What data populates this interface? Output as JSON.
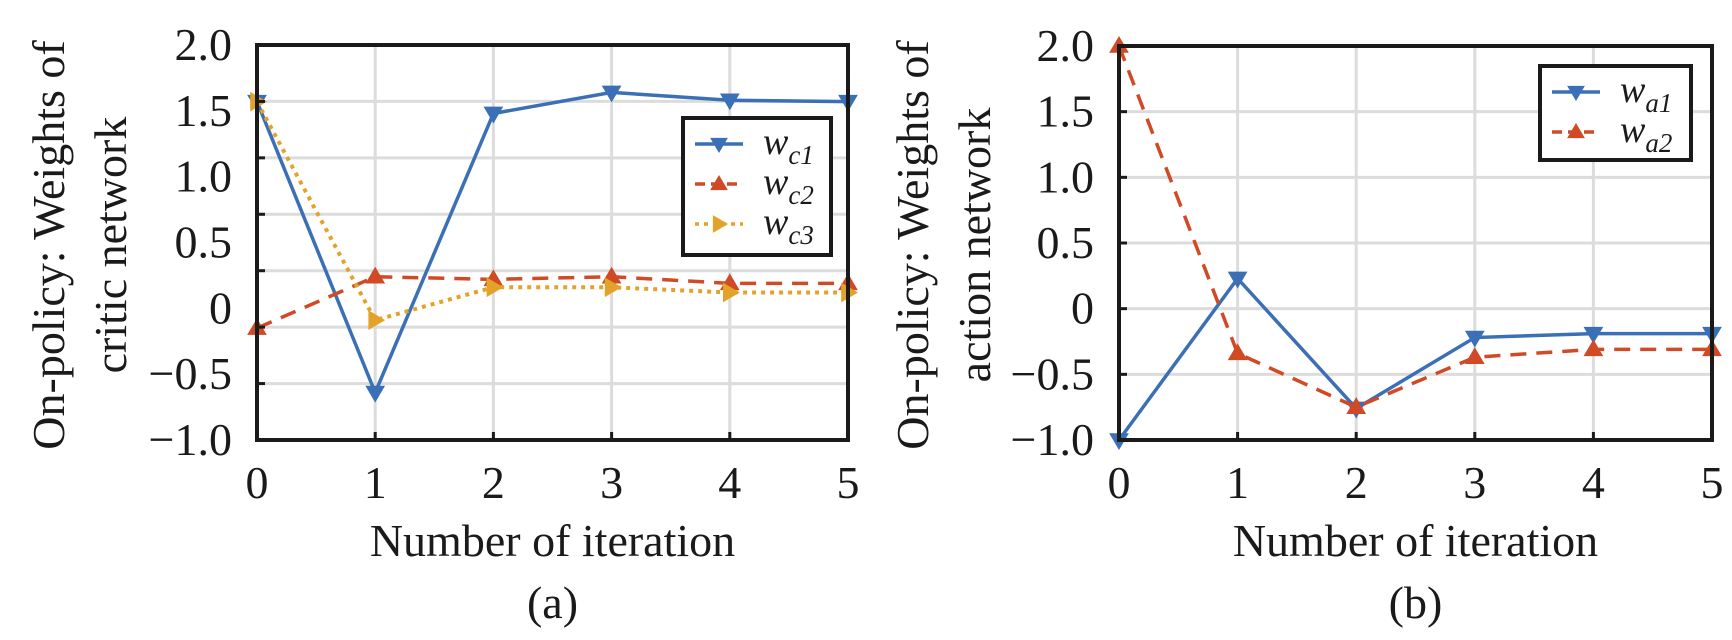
{
  "chart_data": [
    {
      "type": "line",
      "panel_label": "(a)",
      "title": "",
      "xlabel": "Number of iteration",
      "ylabel_lines": [
        "On-policy: Weights of",
        "critic network"
      ],
      "x": [
        0,
        1,
        2,
        3,
        4,
        5
      ],
      "xticks": [
        "0",
        "1",
        "2",
        "3",
        "4",
        "5"
      ],
      "xlim": [
        0,
        5
      ],
      "ylim": [
        -1.0,
        2.0
      ],
      "yticks": [
        "2.0",
        "1.5",
        "1.0",
        "0.5",
        "0",
        "−0.5",
        "−1.0"
      ],
      "grid": true,
      "grid_y_divisions": 7,
      "legend_position": "upper-right",
      "series": [
        {
          "name": "w",
          "sub": "c1",
          "color": "#3b6fb6",
          "dash": "solid",
          "marker": "triangle-down",
          "values": [
            1.57,
            -0.64,
            1.48,
            1.64,
            1.58,
            1.57
          ]
        },
        {
          "name": "w",
          "sub": "c2",
          "color": "#d04a26",
          "dash": "dashed",
          "marker": "triangle-up",
          "values": [
            -0.15,
            0.24,
            0.22,
            0.24,
            0.19,
            0.19
          ]
        },
        {
          "name": "w",
          "sub": "c3",
          "color": "#e3a229",
          "dash": "dotted",
          "marker": "triangle-right",
          "values": [
            1.57,
            -0.09,
            0.16,
            0.16,
            0.12,
            0.12
          ]
        }
      ]
    },
    {
      "type": "line",
      "panel_label": "(b)",
      "title": "",
      "xlabel": "Number of iteration",
      "ylabel_lines": [
        "On-policy: Weights of",
        "action network"
      ],
      "x": [
        0,
        1,
        2,
        3,
        4,
        5
      ],
      "xticks": [
        "0",
        "1",
        "2",
        "3",
        "4",
        "5"
      ],
      "xlim": [
        0,
        5
      ],
      "ylim": [
        -1.0,
        2.0
      ],
      "yticks": [
        "2.0",
        "1.5",
        "1.0",
        "0.5",
        "0",
        "−0.5",
        "−1.0"
      ],
      "grid": true,
      "grid_y_divisions": 6,
      "legend_position": "upper-right",
      "series": [
        {
          "name": "w",
          "sub": "a1",
          "color": "#3b6fb6",
          "dash": "solid",
          "marker": "triangle-down",
          "values": [
            -1.0,
            0.23,
            -0.76,
            -0.22,
            -0.19,
            -0.19
          ]
        },
        {
          "name": "w",
          "sub": "a2",
          "color": "#d04a26",
          "dash": "dashed",
          "marker": "triangle-up",
          "values": [
            2.0,
            -0.34,
            -0.75,
            -0.37,
            -0.31,
            -0.31
          ]
        }
      ]
    }
  ]
}
